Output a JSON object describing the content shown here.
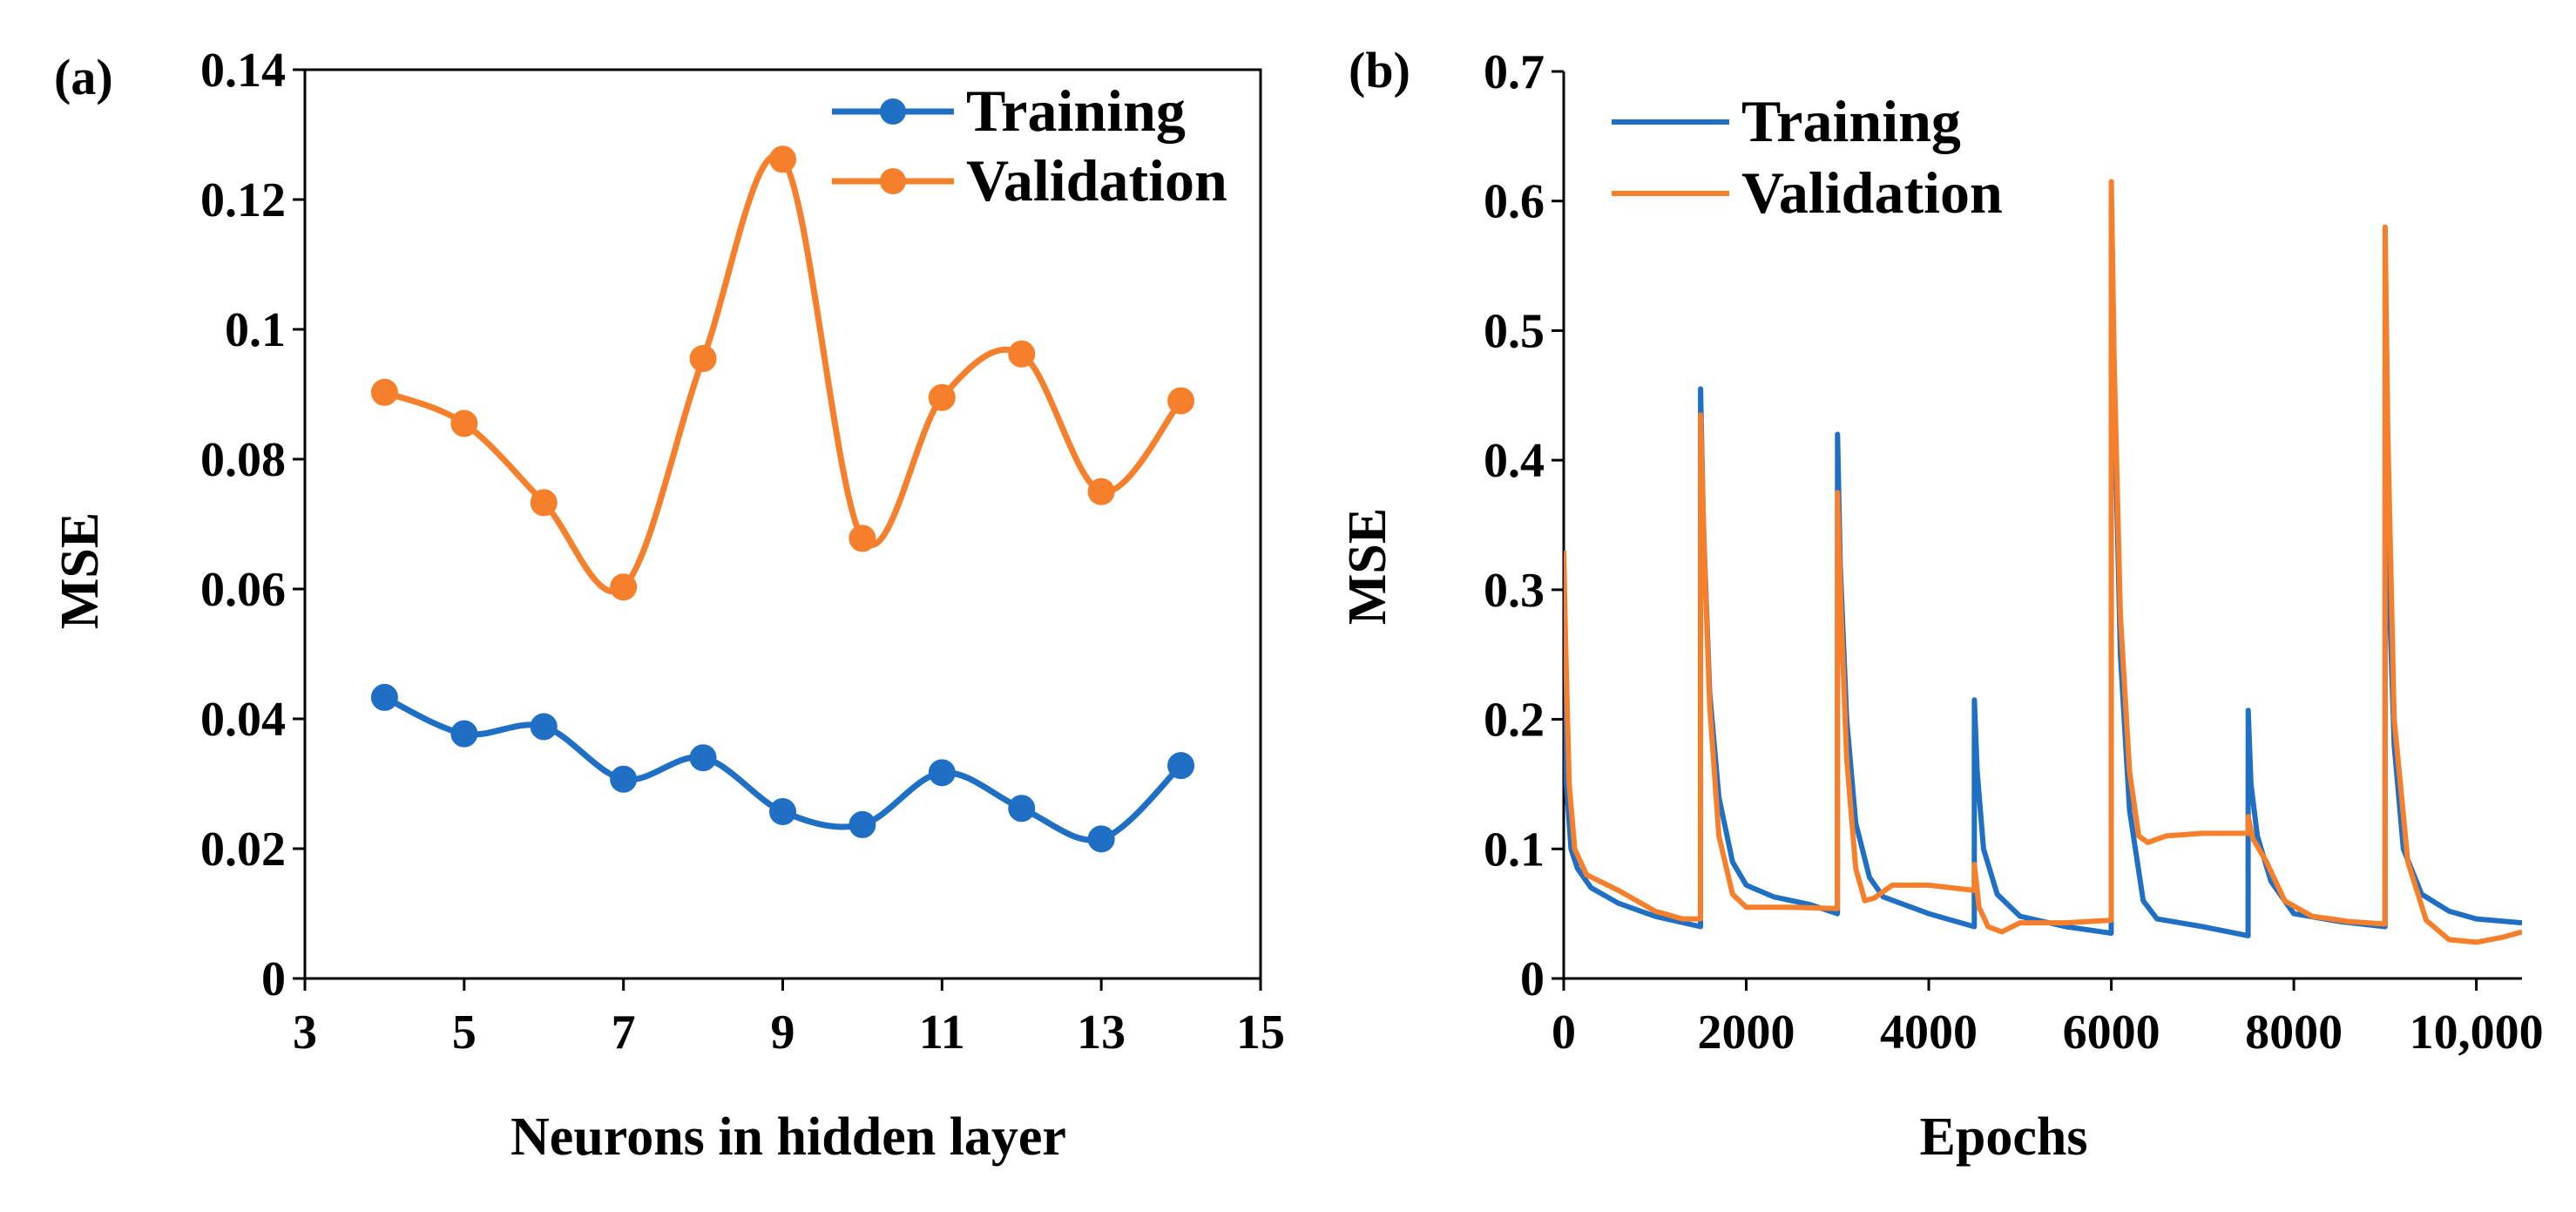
{
  "chart_data": [
    {
      "type": "line",
      "panel_label": "(a)",
      "xlabel": "Neurons in hidden layer",
      "ylabel": "MSE",
      "xlim": [
        3,
        15
      ],
      "ylim": [
        0,
        0.14
      ],
      "xticks": [
        3,
        5,
        7,
        9,
        11,
        13,
        15
      ],
      "yticks": [
        0,
        0.02,
        0.04,
        0.06,
        0.08,
        0.1,
        0.12,
        0.14
      ],
      "ytick_labels": [
        "0",
        "0.02",
        "0.04",
        "0.06",
        "0.08",
        "0.1",
        "0.12",
        "0.14"
      ],
      "grid": false,
      "legend_position": "top-right",
      "x": [
        4,
        5,
        6,
        7,
        8,
        9,
        10,
        11,
        12,
        13,
        14
      ],
      "series": [
        {
          "name": "Training",
          "color": "#1f6fc5",
          "markers": true,
          "values": [
            0.0433,
            0.0377,
            0.0388,
            0.0307,
            0.034,
            0.0257,
            0.0237,
            0.0317,
            0.0262,
            0.0215,
            0.0328
          ]
        },
        {
          "name": "Validation",
          "color": "#f57f2b",
          "markers": true,
          "values": [
            0.0903,
            0.0855,
            0.0733,
            0.0603,
            0.0955,
            0.1262,
            0.0678,
            0.0895,
            0.0962,
            0.075,
            0.089
          ]
        }
      ]
    },
    {
      "type": "line",
      "panel_label": "(b)",
      "xlabel": "Epochs",
      "ylabel": "MSE",
      "xlim": [
        0,
        10500
      ],
      "ylim": [
        0,
        0.7
      ],
      "xticks": [
        0,
        2000,
        4000,
        6000,
        8000,
        10000
      ],
      "xtick_labels": [
        "0",
        "2000",
        "4000",
        "6000",
        "8000",
        "10,000"
      ],
      "yticks": [
        0,
        0.1,
        0.2,
        0.3,
        0.4,
        0.5,
        0.6,
        0.7
      ],
      "ytick_labels": [
        "0",
        "0.1",
        "0.2",
        "0.3",
        "0.4",
        "0.5",
        "0.6",
        "0.7"
      ],
      "grid": false,
      "legend_position": "top-left",
      "series": [
        {
          "name": "Training",
          "color": "#1f6fc5",
          "markers": false,
          "points": [
            [
              0,
              0.26
            ],
            [
              30,
              0.15
            ],
            [
              80,
              0.1
            ],
            [
              150,
              0.085
            ],
            [
              300,
              0.07
            ],
            [
              600,
              0.058
            ],
            [
              1000,
              0.048
            ],
            [
              1499,
              0.04
            ],
            [
              1500,
              0.455
            ],
            [
              1530,
              0.35
            ],
            [
              1600,
              0.22
            ],
            [
              1700,
              0.14
            ],
            [
              1850,
              0.09
            ],
            [
              2000,
              0.072
            ],
            [
              2300,
              0.063
            ],
            [
              2700,
              0.057
            ],
            [
              2999,
              0.05
            ],
            [
              3000,
              0.42
            ],
            [
              3030,
              0.32
            ],
            [
              3100,
              0.2
            ],
            [
              3200,
              0.12
            ],
            [
              3350,
              0.078
            ],
            [
              3500,
              0.063
            ],
            [
              4000,
              0.05
            ],
            [
              4499,
              0.04
            ],
            [
              4500,
              0.215
            ],
            [
              4530,
              0.16
            ],
            [
              4600,
              0.1
            ],
            [
              4750,
              0.065
            ],
            [
              5000,
              0.048
            ],
            [
              5500,
              0.04
            ],
            [
              5999,
              0.035
            ],
            [
              6000,
              0.6
            ],
            [
              6040,
              0.43
            ],
            [
              6100,
              0.25
            ],
            [
              6200,
              0.13
            ],
            [
              6350,
              0.06
            ],
            [
              6500,
              0.046
            ],
            [
              7000,
              0.04
            ],
            [
              7499,
              0.033
            ],
            [
              7500,
              0.207
            ],
            [
              7530,
              0.15
            ],
            [
              7600,
              0.11
            ],
            [
              7750,
              0.075
            ],
            [
              8000,
              0.05
            ],
            [
              8500,
              0.044
            ],
            [
              8999,
              0.04
            ],
            [
              9000,
              0.47
            ],
            [
              9030,
              0.33
            ],
            [
              9100,
              0.18
            ],
            [
              9200,
              0.1
            ],
            [
              9400,
              0.065
            ],
            [
              9700,
              0.052
            ],
            [
              10000,
              0.046
            ],
            [
              10500,
              0.043
            ]
          ]
        },
        {
          "name": "Validation",
          "color": "#f57f2b",
          "markers": false,
          "points": [
            [
              0,
              0.33
            ],
            [
              20,
              0.26
            ],
            [
              60,
              0.15
            ],
            [
              120,
              0.1
            ],
            [
              250,
              0.08
            ],
            [
              600,
              0.068
            ],
            [
              1000,
              0.052
            ],
            [
              1300,
              0.046
            ],
            [
              1499,
              0.046
            ],
            [
              1500,
              0.435
            ],
            [
              1540,
              0.33
            ],
            [
              1600,
              0.21
            ],
            [
              1700,
              0.11
            ],
            [
              1850,
              0.065
            ],
            [
              2000,
              0.055
            ],
            [
              2500,
              0.055
            ],
            [
              2999,
              0.054
            ],
            [
              3000,
              0.375
            ],
            [
              3040,
              0.28
            ],
            [
              3100,
              0.17
            ],
            [
              3200,
              0.085
            ],
            [
              3300,
              0.06
            ],
            [
              3400,
              0.062
            ],
            [
              3600,
              0.072
            ],
            [
              4000,
              0.072
            ],
            [
              4499,
              0.068
            ],
            [
              4500,
              0.088
            ],
            [
              4550,
              0.055
            ],
            [
              4650,
              0.04
            ],
            [
              4800,
              0.036
            ],
            [
              5000,
              0.043
            ],
            [
              5500,
              0.043
            ],
            [
              5999,
              0.045
            ],
            [
              6000,
              0.615
            ],
            [
              6030,
              0.48
            ],
            [
              6100,
              0.28
            ],
            [
              6200,
              0.16
            ],
            [
              6300,
              0.11
            ],
            [
              6400,
              0.105
            ],
            [
              6600,
              0.11
            ],
            [
              7000,
              0.112
            ],
            [
              7499,
              0.112
            ],
            [
              7500,
              0.125
            ],
            [
              7550,
              0.108
            ],
            [
              7700,
              0.09
            ],
            [
              7900,
              0.06
            ],
            [
              8200,
              0.048
            ],
            [
              8600,
              0.044
            ],
            [
              8999,
              0.042
            ],
            [
              9000,
              0.58
            ],
            [
              9030,
              0.42
            ],
            [
              9100,
              0.2
            ],
            [
              9250,
              0.09
            ],
            [
              9450,
              0.045
            ],
            [
              9700,
              0.03
            ],
            [
              10000,
              0.028
            ],
            [
              10300,
              0.032
            ],
            [
              10500,
              0.036
            ]
          ]
        }
      ]
    }
  ]
}
